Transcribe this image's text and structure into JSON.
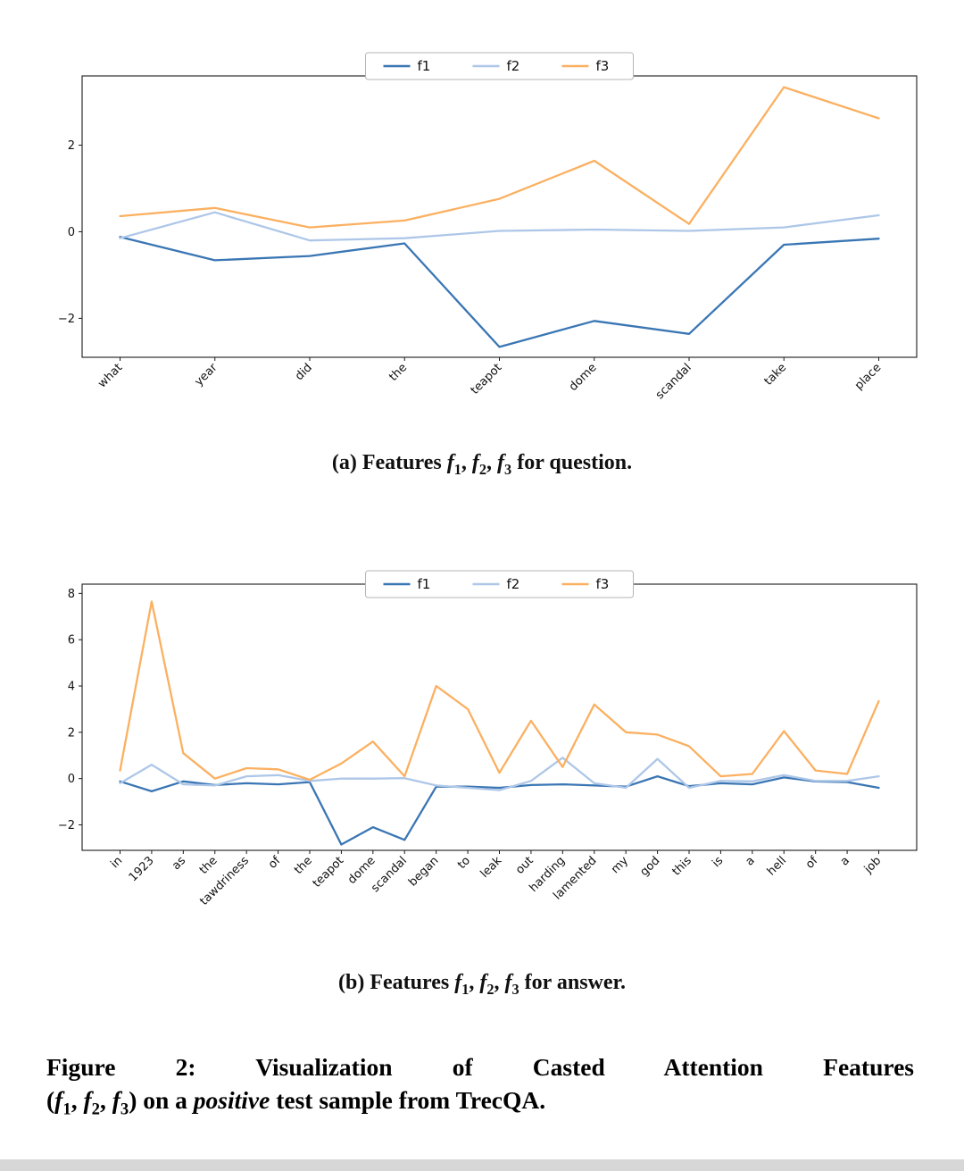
{
  "page": {
    "background": "#ffffff",
    "footer_strip_color": "#d7d7d7"
  },
  "chart_data": [
    {
      "type": "line",
      "title": "",
      "xlabel": "",
      "ylabel": "",
      "grid": false,
      "legend_position": "top-center",
      "categories": [
        "what",
        "year",
        "did",
        "the",
        "teapot",
        "dome",
        "scandal",
        "take",
        "place"
      ],
      "series": [
        {
          "name": "f1",
          "color": "#3a76b4",
          "values": [
            -0.12,
            -0.66,
            -0.56,
            -0.27,
            -2.66,
            -2.06,
            -2.36,
            -0.3,
            -0.16
          ]
        },
        {
          "name": "f2",
          "color": "#aec7e8",
          "values": [
            -0.15,
            0.45,
            -0.2,
            -0.15,
            0.02,
            0.05,
            0.02,
            0.1,
            0.38
          ]
        },
        {
          "name": "f3",
          "color": "#fbb061",
          "values": [
            0.36,
            0.55,
            0.1,
            0.26,
            0.76,
            1.64,
            0.18,
            3.34,
            2.62
          ]
        }
      ],
      "ylim": [
        -2.9,
        3.6
      ],
      "yticks": [
        -2,
        0,
        2
      ]
    },
    {
      "type": "line",
      "title": "",
      "xlabel": "",
      "ylabel": "",
      "grid": false,
      "legend_position": "top-center",
      "categories": [
        "in",
        "1923",
        "as",
        "the",
        "tawdriness",
        "of",
        "the",
        "teapot",
        "dome",
        "scandal",
        "began",
        "to",
        "leak",
        "out",
        "harding",
        "lamented",
        "my",
        "god",
        "this",
        "is",
        "a",
        "hell",
        "of",
        "a",
        "job"
      ],
      "series": [
        {
          "name": "f1",
          "color": "#3a76b4",
          "values": [
            -0.12,
            -0.55,
            -0.12,
            -0.28,
            -0.2,
            -0.25,
            -0.15,
            -2.85,
            -2.1,
            -2.65,
            -0.35,
            -0.35,
            -0.4,
            -0.28,
            -0.25,
            -0.3,
            -0.35,
            0.1,
            -0.33,
            -0.2,
            -0.25,
            0.05,
            -0.12,
            -0.15,
            -0.4
          ]
        },
        {
          "name": "f2",
          "color": "#aec7e8",
          "values": [
            -0.2,
            0.6,
            -0.25,
            -0.3,
            0.1,
            0.15,
            -0.1,
            0.0,
            0.0,
            0.02,
            -0.3,
            -0.4,
            -0.5,
            -0.1,
            0.9,
            -0.2,
            -0.4,
            0.85,
            -0.4,
            -0.1,
            -0.12,
            0.15,
            -0.1,
            -0.1,
            0.1
          ]
        },
        {
          "name": "f3",
          "color": "#fbb061",
          "values": [
            0.35,
            7.65,
            1.1,
            0.0,
            0.45,
            0.4,
            -0.05,
            0.65,
            1.6,
            0.1,
            4.0,
            3.0,
            0.25,
            2.5,
            0.5,
            3.2,
            2.0,
            1.9,
            1.4,
            0.1,
            0.2,
            2.05,
            0.35,
            0.2,
            3.35
          ]
        }
      ],
      "ylim": [
        -3.1,
        8.4
      ],
      "yticks": [
        -2,
        0,
        2,
        4,
        6,
        8
      ]
    }
  ],
  "captions": {
    "a": [
      [
        {
          "t": "(a) Features "
        },
        {
          "f": "f",
          "sub": "1"
        },
        {
          "t": ", "
        },
        {
          "f": "f",
          "sub": "2"
        },
        {
          "t": ", "
        },
        {
          "f": "f",
          "sub": "3"
        },
        {
          "t": " for question."
        }
      ]
    ],
    "b": [
      [
        {
          "t": "(b) Features "
        },
        {
          "f": "f",
          "sub": "1"
        },
        {
          "t": ", "
        },
        {
          "f": "f",
          "sub": "2"
        },
        {
          "t": ", "
        },
        {
          "f": "f",
          "sub": "3"
        },
        {
          "t": " for answer."
        }
      ]
    ],
    "figure": [
      [
        {
          "t": "Figure 2: Visualization of Casted Attention Features"
        }
      ],
      [
        {
          "t": "("
        },
        {
          "f": "f",
          "sub": "1"
        },
        {
          "t": ", "
        },
        {
          "f": "f",
          "sub": "2"
        },
        {
          "t": ", "
        },
        {
          "f": "f",
          "sub": "3"
        },
        {
          "t": ") on a "
        },
        {
          "em": "positive"
        },
        {
          "t": " test sample from TrecQA."
        }
      ]
    ]
  }
}
